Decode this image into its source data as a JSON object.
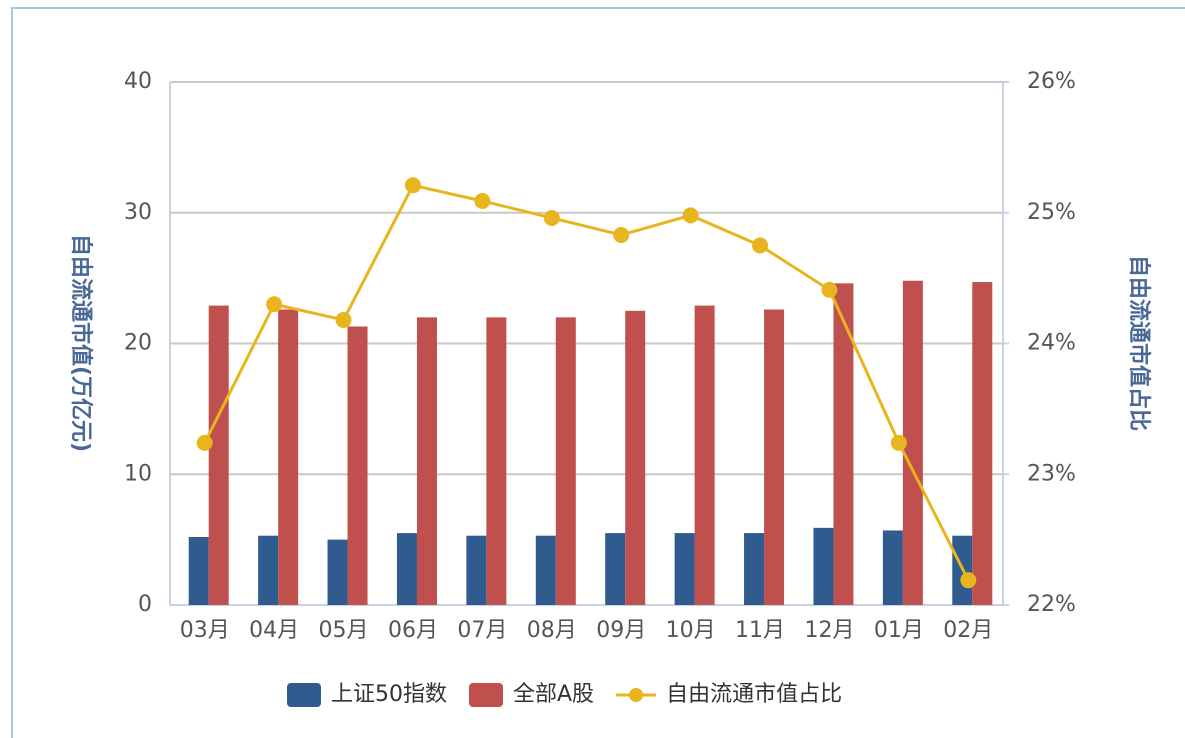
{
  "chart_data": {
    "type": "bar-line",
    "categories": [
      "03月",
      "04月",
      "05月",
      "06月",
      "07月",
      "08月",
      "09月",
      "10月",
      "11月",
      "12月",
      "01月",
      "02月"
    ],
    "ylabel": "自由流通市值(万亿元)",
    "y2label": "自由流通市值占比",
    "ylim": [
      0,
      40
    ],
    "yticks": [
      0,
      10,
      20,
      30,
      40
    ],
    "y2lim": [
      22,
      26
    ],
    "y2ticks": [
      {
        "value": 22,
        "label": "22%"
      },
      {
        "value": 23,
        "label": "23%"
      },
      {
        "value": 24,
        "label": "24%"
      },
      {
        "value": 25,
        "label": "25%"
      },
      {
        "value": 26,
        "label": "26%"
      }
    ],
    "grid": true,
    "legend": "bottom",
    "series": [
      {
        "name": "上证50指数",
        "type": "bar",
        "color": "#2f5b8e",
        "values": [
          5.2,
          5.3,
          5.0,
          5.5,
          5.3,
          5.3,
          5.5,
          5.5,
          5.5,
          5.9,
          5.7,
          5.3
        ]
      },
      {
        "name": "全部A股",
        "type": "bar",
        "color": "#c0504d",
        "values": [
          22.9,
          22.6,
          21.3,
          22.0,
          22.0,
          22.0,
          22.5,
          22.9,
          22.6,
          24.6,
          24.8,
          24.7
        ]
      },
      {
        "name": "自由流通市值占比",
        "type": "line",
        "axis": "y2",
        "color": "#e8b51e",
        "values": [
          23.24,
          24.3,
          24.18,
          25.21,
          25.09,
          24.96,
          24.83,
          24.98,
          24.75,
          24.41,
          23.24,
          22.19
        ]
      }
    ]
  }
}
